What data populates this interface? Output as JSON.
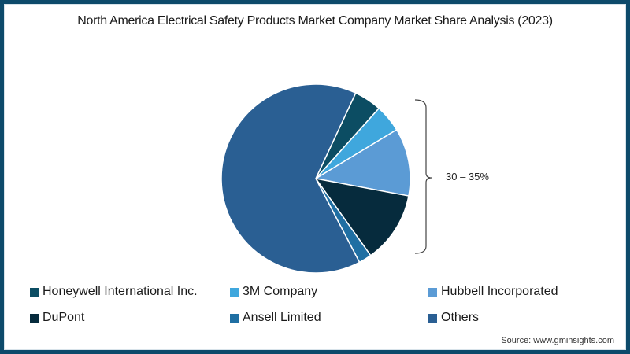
{
  "chart_data": {
    "type": "pie",
    "title": "North America Electrical Safety Products Market Company Market Share Analysis (2023)",
    "categories": [
      "Honeywell International Inc.",
      "3M Company",
      "Hubbell Incorporated",
      "DuPont",
      "Ansell Limited",
      "Others"
    ],
    "values": [
      4.7,
      4.7,
      11.6,
      12.2,
      2.2,
      64.6
    ],
    "colors": [
      "#0c4d63",
      "#3fa7dd",
      "#5b9bd5",
      "#062b3d",
      "#1f6fa3",
      "#2a5f93"
    ],
    "annotation": {
      "text": "30 – 35%",
      "covers": [
        "Honeywell International Inc.",
        "3M Company",
        "Hubbell Incorporated",
        "DuPont",
        "Ansell Limited"
      ]
    },
    "legend_position": "bottom",
    "source": "Source: www.gminsights.com"
  },
  "title": "North America Electrical Safety Products Market Company Market Share Analysis (2023)",
  "annotation_label": "30 – 35%",
  "legend": [
    {
      "label": "Honeywell International Inc.",
      "color": "#0c4d63"
    },
    {
      "label": "3M Company",
      "color": "#3fa7dd"
    },
    {
      "label": "Hubbell Incorporated",
      "color": "#5b9bd5"
    },
    {
      "label": "DuPont",
      "color": "#062b3d"
    },
    {
      "label": "Ansell Limited",
      "color": "#1f6fa3"
    },
    {
      "label": "Others",
      "color": "#2a5f93"
    }
  ],
  "source": "Source: www.gminsights.com"
}
